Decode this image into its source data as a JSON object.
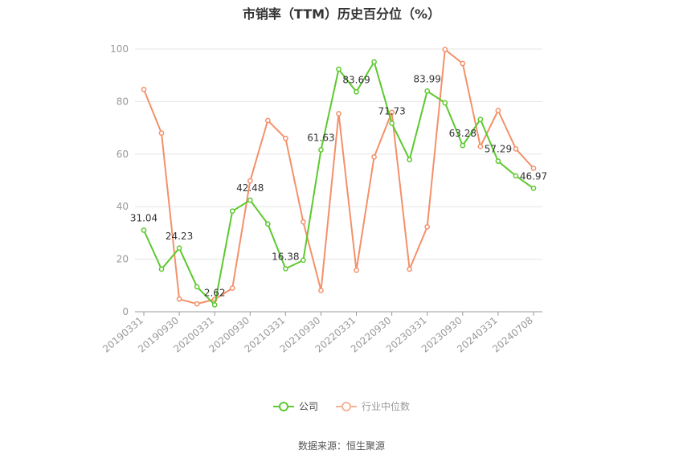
{
  "chart_data": {
    "type": "line",
    "title": "市销率（TTM）历史百分位（%）",
    "ylim": [
      0,
      100
    ],
    "yticks": [
      0,
      20,
      40,
      60,
      80,
      100
    ],
    "x_tick_labels": [
      "20190331",
      "20190930",
      "20200331",
      "20200930",
      "20210331",
      "20210930",
      "20220331",
      "20220930",
      "20230331",
      "20230930",
      "20240331",
      "20240708"
    ],
    "legend_position": "bottom-center",
    "grid": true,
    "series": [
      {
        "name": "公司",
        "color": "#5cc92e",
        "values": [
          31.04,
          16.2,
          24.23,
          9.5,
          2.62,
          38.3,
          42.48,
          33.4,
          16.38,
          19.6,
          61.63,
          92.3,
          83.69,
          95.1,
          71.73,
          57.9,
          83.99,
          79.5,
          63.28,
          73.2,
          57.29,
          51.7,
          46.97
        ]
      },
      {
        "name": "行业中位数",
        "color": "#f4906a",
        "values": [
          84.6,
          68.0,
          4.8,
          3.0,
          4.7,
          9.0,
          49.8,
          72.8,
          66.0,
          34.2,
          8.1,
          75.4,
          15.8,
          58.9,
          75.9,
          16.2,
          32.3,
          99.8,
          94.5,
          62.9,
          76.6,
          62.0,
          54.6
        ]
      }
    ],
    "annotations": [
      {
        "series": 0,
        "index": 0,
        "text": "31.04"
      },
      {
        "series": 0,
        "index": 2,
        "text": "24.23"
      },
      {
        "series": 0,
        "index": 4,
        "text": "2.62"
      },
      {
        "series": 0,
        "index": 6,
        "text": "42.48"
      },
      {
        "series": 0,
        "index": 8,
        "text": "16.38"
      },
      {
        "series": 0,
        "index": 10,
        "text": "61.63"
      },
      {
        "series": 0,
        "index": 12,
        "text": "83.69"
      },
      {
        "series": 0,
        "index": 14,
        "text": "71.73"
      },
      {
        "series": 0,
        "index": 16,
        "text": "83.99"
      },
      {
        "series": 0,
        "index": 18,
        "text": "63.28"
      },
      {
        "series": 0,
        "index": 20,
        "text": "57.29"
      },
      {
        "series": 0,
        "index": 22,
        "text": "46.97"
      }
    ],
    "source": "数据来源：恒生聚源"
  }
}
